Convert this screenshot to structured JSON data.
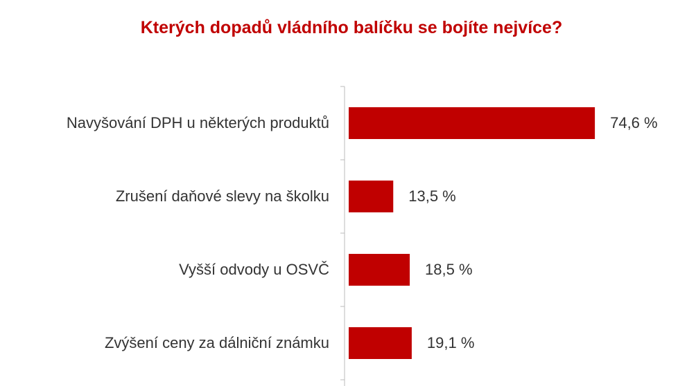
{
  "chart_data": {
    "type": "bar",
    "orientation": "horizontal",
    "title": "Kterých dopadů vládního balíčku se bojíte nejvíce?",
    "categories": [
      "Navyšování DPH u některých produktů",
      "Zrušení daňové slevy na školku",
      "Vyšší odvody u OSVČ",
      "Zvýšení ceny za dálniční známku"
    ],
    "values": [
      74.6,
      13.5,
      18.5,
      19.1
    ],
    "value_labels": [
      "74,6 %",
      "13,5 %",
      "18,5 %",
      "19,1 %"
    ],
    "color": "#c00000",
    "title_color": "#c00000"
  }
}
